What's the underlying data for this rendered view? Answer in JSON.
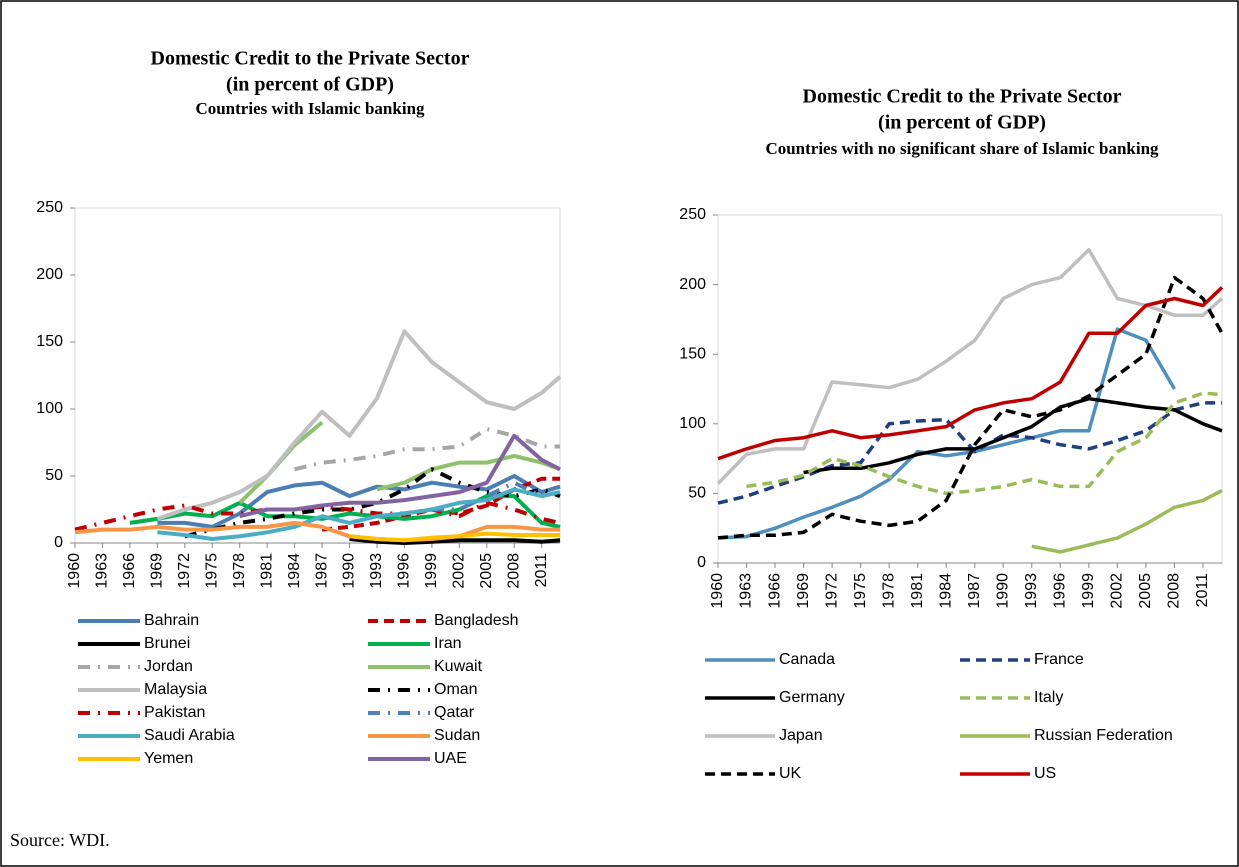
{
  "source": "Source: WDI.",
  "chart_data": [
    {
      "type": "line",
      "title": "Domestic Credit to the Private Sector",
      "subtitle": [
        "(in percent of GDP)",
        "Countries with Islamic banking"
      ],
      "x": [
        1960,
        1963,
        1966,
        1969,
        1972,
        1975,
        1978,
        1981,
        1984,
        1987,
        1990,
        1993,
        1996,
        1999,
        2002,
        2005,
        2008,
        2011,
        2013
      ],
      "xlim": [
        1960,
        2013
      ],
      "xticks": [
        1960,
        1963,
        1966,
        1969,
        1972,
        1975,
        1978,
        1981,
        1984,
        1987,
        1990,
        1993,
        1996,
        1999,
        2002,
        2005,
        2008,
        2011
      ],
      "ylim": [
        0,
        250
      ],
      "yticks": [
        0,
        50,
        100,
        150,
        200,
        250
      ],
      "series": [
        {
          "name": "Bahrain",
          "color": "#4a7eb4",
          "style": "solid",
          "values": [
            null,
            null,
            null,
            15,
            15,
            12,
            22,
            38,
            43,
            45,
            35,
            42,
            40,
            45,
            42,
            40,
            50,
            38,
            42
          ]
        },
        {
          "name": "Bangladesh",
          "color": "#c00000",
          "style": "dash",
          "values": [
            null,
            null,
            null,
            null,
            null,
            null,
            null,
            null,
            null,
            10,
            12,
            15,
            20,
            25,
            22,
            28,
            40,
            48,
            48
          ]
        },
        {
          "name": "Brunei",
          "color": "#000000",
          "style": "solid",
          "values": [
            null,
            null,
            null,
            null,
            null,
            null,
            null,
            null,
            null,
            null,
            3,
            1,
            0,
            1,
            2,
            2,
            2,
            1,
            2
          ]
        },
        {
          "name": "Iran",
          "color": "#00b050",
          "style": "solid",
          "values": [
            null,
            null,
            15,
            18,
            22,
            20,
            30,
            20,
            20,
            18,
            22,
            20,
            18,
            20,
            25,
            35,
            35,
            15,
            12
          ]
        },
        {
          "name": "Jordan",
          "color": "#a6a6a6",
          "style": "dashdot",
          "values": [
            null,
            null,
            null,
            null,
            null,
            null,
            null,
            null,
            55,
            60,
            62,
            65,
            70,
            70,
            72,
            85,
            80,
            72,
            72
          ]
        },
        {
          "name": "Kuwait",
          "color": "#8fc06a",
          "style": "solid",
          "values": [
            null,
            null,
            null,
            null,
            null,
            null,
            30,
            50,
            73,
            90,
            null,
            40,
            45,
            55,
            60,
            60,
            65,
            60,
            55
          ]
        },
        {
          "name": "Malaysia",
          "color": "#bfbfbf",
          "style": "solid",
          "values": [
            null,
            null,
            null,
            18,
            25,
            30,
            38,
            50,
            75,
            98,
            80,
            108,
            158,
            135,
            120,
            105,
            100,
            112,
            124
          ]
        },
        {
          "name": "Oman",
          "color": "#000000",
          "style": "dashdot",
          "values": [
            null,
            null,
            null,
            null,
            5,
            10,
            15,
            18,
            22,
            25,
            25,
            30,
            40,
            55,
            45,
            38,
            35,
            40,
            35
          ]
        },
        {
          "name": "Pakistan",
          "color": "#c00000",
          "style": "dashdot",
          "values": [
            10,
            15,
            20,
            25,
            28,
            22,
            22,
            25,
            25,
            27,
            25,
            22,
            22,
            25,
            20,
            30,
            25,
            18,
            15
          ]
        },
        {
          "name": "Qatar",
          "color": "#4f81bd",
          "style": "dashdot",
          "values": [
            null,
            null,
            null,
            null,
            null,
            null,
            null,
            null,
            null,
            null,
            50,
            null,
            null,
            25,
            25,
            35,
            45,
            35,
            38
          ]
        },
        {
          "name": "Saudi Arabia",
          "color": "#4bacc6",
          "style": "solid",
          "values": [
            null,
            null,
            null,
            8,
            6,
            3,
            5,
            8,
            12,
            20,
            15,
            20,
            22,
            25,
            30,
            32,
            40,
            35,
            38
          ]
        },
        {
          "name": "Sudan",
          "color": "#f79646",
          "style": "solid",
          "values": [
            8,
            10,
            10,
            12,
            10,
            10,
            12,
            12,
            15,
            12,
            5,
            3,
            2,
            3,
            5,
            12,
            12,
            10,
            10
          ]
        },
        {
          "name": "Yemen",
          "color": "#ffc000",
          "style": "solid",
          "values": [
            null,
            null,
            null,
            null,
            null,
            null,
            null,
            null,
            null,
            null,
            5,
            3,
            2,
            4,
            5,
            7,
            6,
            6,
            6
          ]
        },
        {
          "name": "UAE",
          "color": "#8064a2",
          "style": "solid",
          "values": [
            null,
            null,
            null,
            null,
            null,
            null,
            20,
            25,
            25,
            28,
            30,
            30,
            32,
            35,
            38,
            45,
            80,
            62,
            55
          ]
        }
      ]
    },
    {
      "type": "line",
      "title": "Domestic Credit to the Private Sector",
      "subtitle": [
        "(in percent of GDP)",
        "Countries with no significant share of Islamic banking"
      ],
      "x": [
        1960,
        1963,
        1966,
        1969,
        1972,
        1975,
        1978,
        1981,
        1984,
        1987,
        1990,
        1993,
        1996,
        1999,
        2002,
        2005,
        2008,
        2011,
        2013
      ],
      "xlim": [
        1960,
        2013
      ],
      "xticks": [
        1960,
        1963,
        1966,
        1969,
        1972,
        1975,
        1978,
        1981,
        1984,
        1987,
        1990,
        1993,
        1996,
        1999,
        2002,
        2005,
        2008,
        2011
      ],
      "ylim": [
        0,
        250
      ],
      "yticks": [
        0,
        50,
        100,
        150,
        200,
        250
      ],
      "series": [
        {
          "name": "Canada",
          "color": "#4f8fc0",
          "style": "solid",
          "values": [
            18,
            19,
            25,
            33,
            40,
            48,
            60,
            80,
            77,
            80,
            85,
            90,
            95,
            95,
            168,
            160,
            125,
            null,
            null
          ]
        },
        {
          "name": "France",
          "color": "#1f3f7f",
          "style": "dash",
          "values": [
            43,
            48,
            55,
            62,
            70,
            72,
            100,
            102,
            103,
            80,
            92,
            90,
            85,
            82,
            88,
            95,
            110,
            115,
            115
          ]
        },
        {
          "name": "Germany",
          "color": "#000000",
          "style": "solid",
          "values": [
            null,
            null,
            null,
            65,
            68,
            68,
            72,
            78,
            82,
            82,
            90,
            98,
            112,
            118,
            115,
            112,
            110,
            100,
            95
          ]
        },
        {
          "name": "Italy",
          "color": "#9bbb59",
          "style": "dash",
          "values": [
            null,
            55,
            58,
            63,
            75,
            70,
            62,
            55,
            50,
            52,
            55,
            60,
            55,
            55,
            80,
            90,
            115,
            122,
            121
          ]
        },
        {
          "name": "Japan",
          "color": "#bfbfbf",
          "style": "solid",
          "values": [
            57,
            78,
            82,
            82,
            130,
            128,
            126,
            132,
            145,
            160,
            190,
            200,
            205,
            225,
            190,
            185,
            178,
            178,
            190
          ]
        },
        {
          "name": "Russian Federation",
          "color": "#9bbb59",
          "style": "solid",
          "values": [
            null,
            null,
            null,
            null,
            null,
            null,
            null,
            null,
            null,
            null,
            null,
            12,
            8,
            13,
            18,
            28,
            40,
            45,
            52
          ]
        },
        {
          "name": "UK",
          "color": "#000000",
          "style": "dash",
          "values": [
            18,
            20,
            20,
            22,
            35,
            30,
            27,
            30,
            45,
            85,
            110,
            105,
            110,
            120,
            135,
            150,
            205,
            190,
            165
          ]
        },
        {
          "name": "US",
          "color": "#c00000",
          "style": "solid",
          "values": [
            75,
            82,
            88,
            90,
            95,
            90,
            92,
            95,
            98,
            110,
            115,
            118,
            130,
            165,
            165,
            185,
            190,
            185,
            198
          ]
        }
      ]
    }
  ]
}
